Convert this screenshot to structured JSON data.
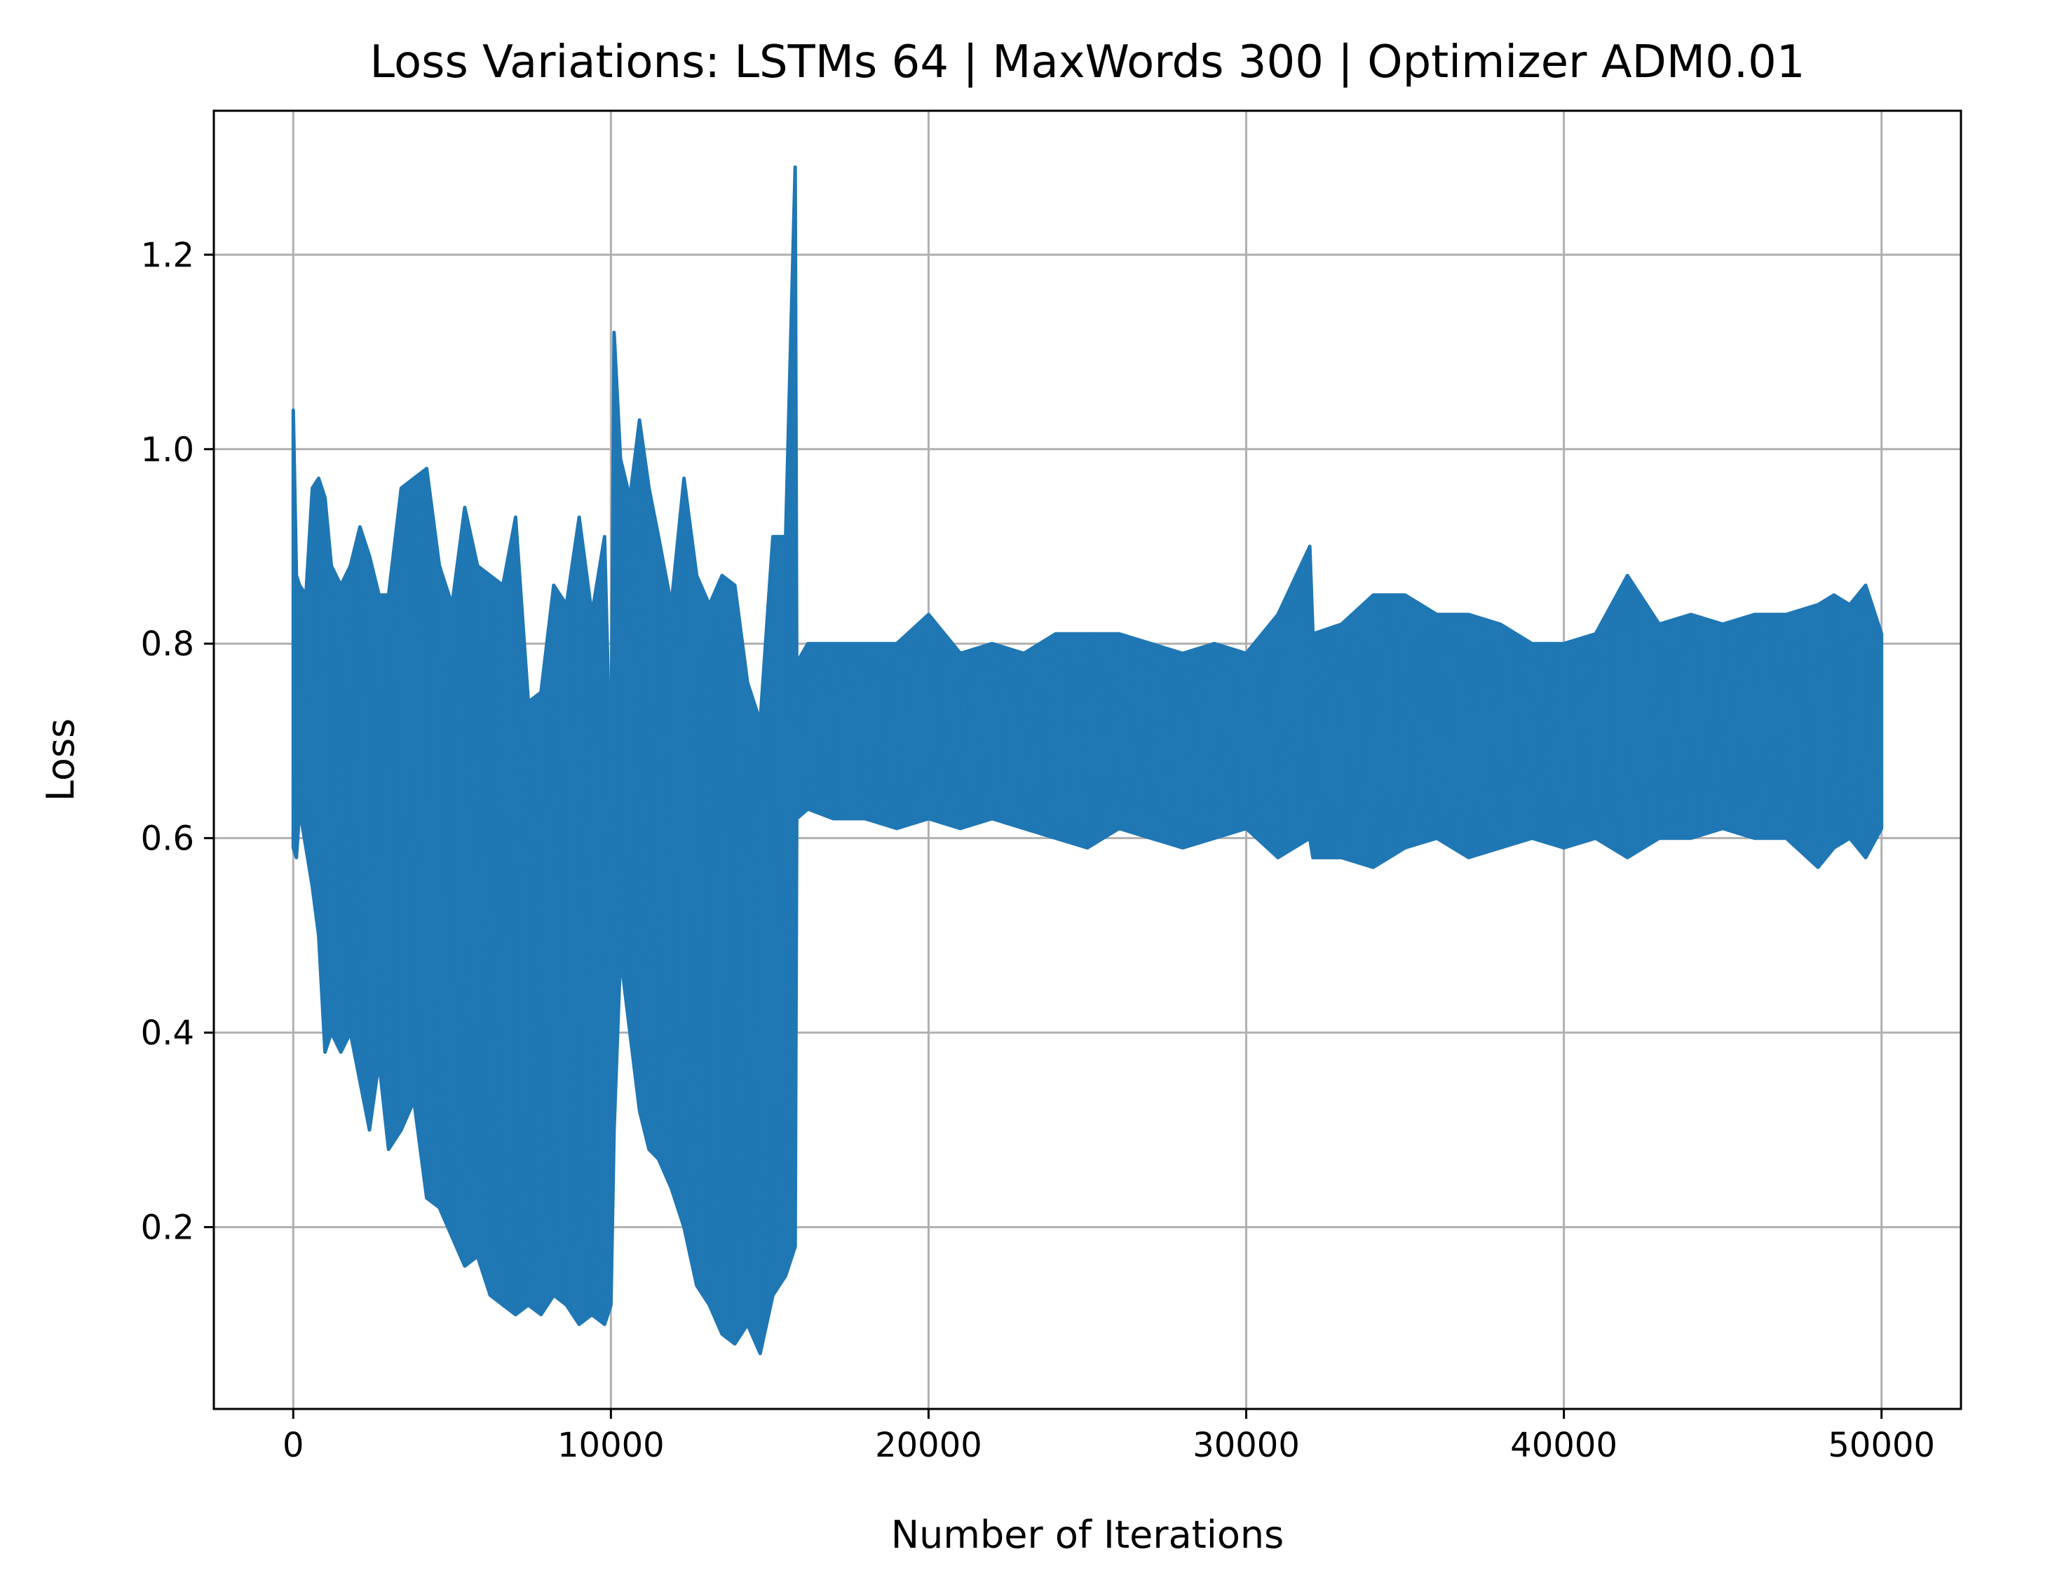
{
  "chart_data": {
    "type": "line",
    "title": "Loss Variations: LSTMs 64 | MaxWords 300 | Optimizer ADM0.01",
    "xlabel": "Number of Iterations",
    "ylabel": "Loss",
    "xlim": [
      -2500,
      52500
    ],
    "ylim": [
      0.013,
      1.348
    ],
    "xticks": [
      0,
      10000,
      20000,
      30000,
      40000,
      50000
    ],
    "xtick_labels": [
      "0",
      "10000",
      "20000",
      "30000",
      "40000",
      "50000"
    ],
    "yticks": [
      0.2,
      0.4,
      0.6,
      0.8,
      1.0,
      1.2
    ],
    "ytick_labels": [
      "0.2",
      "0.4",
      "0.6",
      "0.8",
      "1.0",
      "1.2"
    ],
    "grid": true,
    "legend": "none",
    "line_color": "#1f77b4",
    "series": [
      {
        "x": [
          0,
          100,
          200,
          400,
          600,
          800,
          1000,
          1200,
          1500,
          1800,
          2100,
          2400,
          2700,
          3000,
          3400,
          3800,
          4200,
          4600,
          5000,
          5400,
          5800,
          6200,
          6600,
          7000,
          7400,
          7800,
          8200,
          8600,
          9000,
          9400,
          9800,
          10000,
          10100,
          10300,
          10600,
          10900,
          11200,
          11500,
          11900,
          12300,
          12700,
          13100,
          13500,
          13900,
          14300,
          14700,
          15100,
          15500,
          15800,
          15850,
          16200,
          17000,
          18000,
          19000,
          20000,
          21000,
          22000,
          23000,
          24000,
          25000,
          26000,
          27000,
          28000,
          29000,
          30000,
          31000,
          32000,
          32100,
          33000,
          34000,
          35000,
          36000,
          37000,
          38000,
          39000,
          40000,
          41000,
          42000,
          43000,
          44000,
          45000,
          46000,
          47000,
          48000,
          48500,
          49000,
          49500,
          50000
        ],
        "y_max": [
          1.04,
          0.87,
          0.86,
          0.85,
          0.96,
          0.97,
          0.95,
          0.88,
          0.86,
          0.88,
          0.92,
          0.89,
          0.85,
          0.85,
          0.96,
          0.97,
          0.98,
          0.88,
          0.84,
          0.94,
          0.88,
          0.87,
          0.86,
          0.93,
          0.74,
          0.75,
          0.86,
          0.84,
          0.93,
          0.83,
          0.91,
          0.65,
          1.12,
          0.99,
          0.95,
          1.03,
          0.96,
          0.91,
          0.84,
          0.97,
          0.87,
          0.84,
          0.87,
          0.86,
          0.76,
          0.72,
          0.91,
          0.91,
          1.29,
          0.78,
          0.8,
          0.8,
          0.8,
          0.8,
          0.83,
          0.79,
          0.8,
          0.79,
          0.81,
          0.81,
          0.81,
          0.8,
          0.79,
          0.8,
          0.79,
          0.83,
          0.9,
          0.81,
          0.82,
          0.85,
          0.85,
          0.83,
          0.83,
          0.82,
          0.8,
          0.8,
          0.81,
          0.87,
          0.82,
          0.83,
          0.82,
          0.83,
          0.83,
          0.84,
          0.85,
          0.84,
          0.86,
          0.81
        ],
        "y_min": [
          0.59,
          0.58,
          0.63,
          0.59,
          0.55,
          0.5,
          0.38,
          0.4,
          0.38,
          0.4,
          0.35,
          0.3,
          0.37,
          0.28,
          0.3,
          0.33,
          0.23,
          0.22,
          0.19,
          0.16,
          0.17,
          0.13,
          0.12,
          0.11,
          0.12,
          0.11,
          0.13,
          0.12,
          0.1,
          0.11,
          0.1,
          0.12,
          0.3,
          0.48,
          0.4,
          0.32,
          0.28,
          0.27,
          0.24,
          0.2,
          0.14,
          0.12,
          0.09,
          0.08,
          0.1,
          0.07,
          0.13,
          0.15,
          0.18,
          0.62,
          0.63,
          0.62,
          0.62,
          0.61,
          0.62,
          0.61,
          0.62,
          0.61,
          0.6,
          0.59,
          0.61,
          0.6,
          0.59,
          0.6,
          0.61,
          0.58,
          0.6,
          0.58,
          0.58,
          0.57,
          0.59,
          0.6,
          0.58,
          0.59,
          0.6,
          0.59,
          0.6,
          0.58,
          0.6,
          0.6,
          0.61,
          0.6,
          0.6,
          0.57,
          0.59,
          0.6,
          0.58,
          0.61
        ]
      }
    ]
  }
}
